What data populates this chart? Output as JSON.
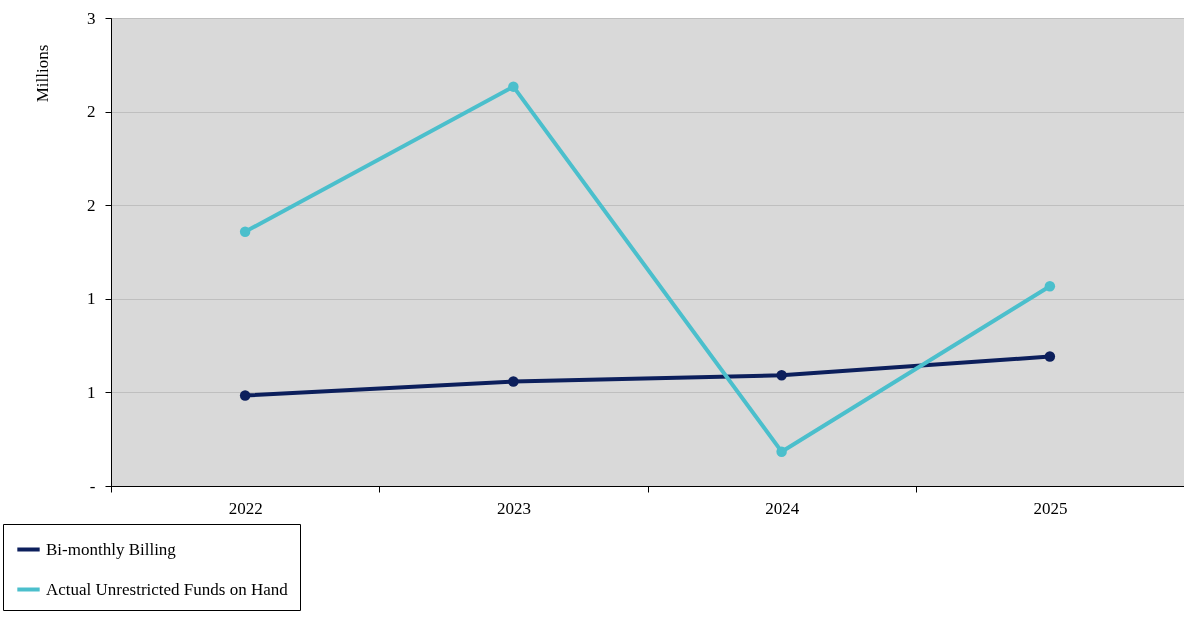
{
  "chart_data": {
    "type": "line",
    "ylabel": "Millions",
    "categories": [
      "2022",
      "2023",
      "2024",
      "2025"
    ],
    "series": [
      {
        "name": "Bi-monthly Billing",
        "color": "#0c1f5c",
        "values": [
          0.58,
          0.67,
          0.71,
          0.83
        ]
      },
      {
        "name": "Actual Unrestricted Funds on Hand",
        "color": "#4bbfcc",
        "values": [
          1.63,
          2.56,
          0.22,
          1.28
        ]
      }
    ],
    "ylim": [
      0,
      3
    ],
    "yticks": [
      {
        "value": 0,
        "label": "-"
      },
      {
        "value": 0.6,
        "label": "1"
      },
      {
        "value": 1.2,
        "label": "1"
      },
      {
        "value": 1.8,
        "label": "2"
      },
      {
        "value": 2.4,
        "label": "2"
      },
      3
    ],
    "grid": "y",
    "legend": "bottom left",
    "marker": "circle",
    "line_style": "solid"
  }
}
